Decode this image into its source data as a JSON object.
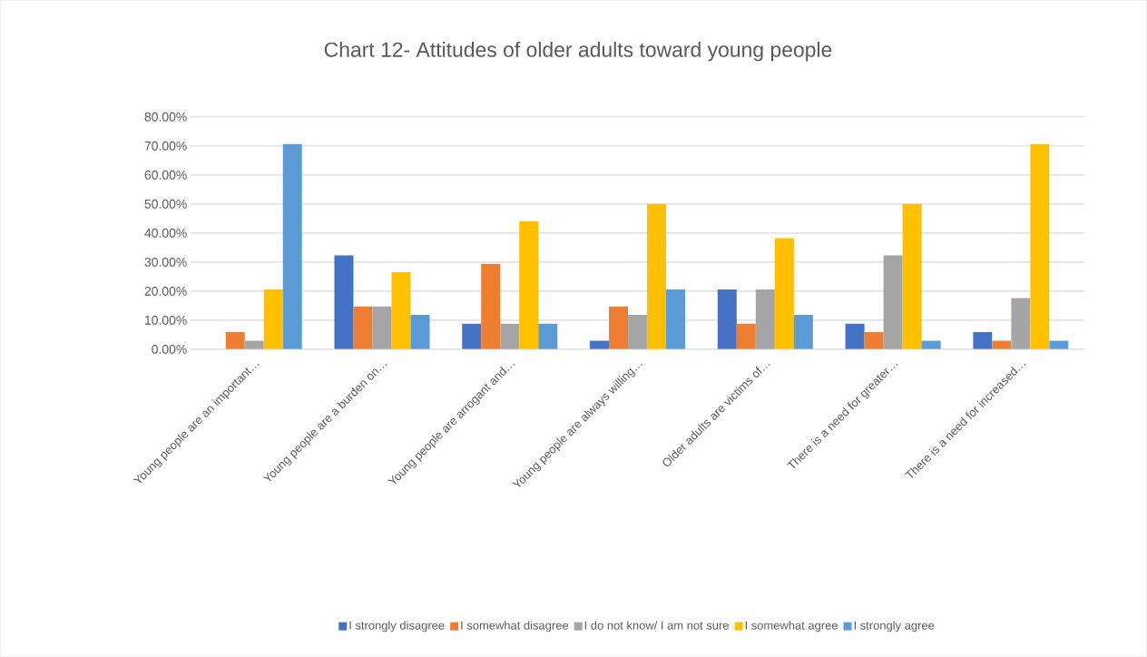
{
  "chart_data": {
    "type": "bar",
    "title": "Chart 12- Attitudes of older adults toward young people",
    "categories": [
      "Young people are an important…",
      "Young people are a burden on…",
      "Young people are arrogant and…",
      "Young people are always willing…",
      "Older adults are victims of…",
      "There is a need for greater…",
      "There is a need for increased…"
    ],
    "series": [
      {
        "name": "I strongly disagree",
        "color": "#4472c4",
        "values": [
          0,
          32.4,
          8.8,
          2.9,
          20.6,
          8.8,
          5.9
        ]
      },
      {
        "name": "I somewhat disagree",
        "color": "#ed7d31",
        "values": [
          5.9,
          14.7,
          29.4,
          14.7,
          8.8,
          5.9,
          2.9
        ]
      },
      {
        "name": "I do not know/ I am not sure",
        "color": "#a5a5a5",
        "values": [
          2.9,
          14.7,
          8.8,
          11.8,
          20.6,
          32.4,
          17.6
        ]
      },
      {
        "name": "I somewhat agree",
        "color": "#ffc000",
        "values": [
          20.6,
          26.5,
          44.1,
          50.0,
          38.2,
          50.0,
          70.6
        ]
      },
      {
        "name": "I strongly agree",
        "color": "#5b9bd5",
        "values": [
          70.6,
          11.8,
          8.8,
          20.6,
          11.8,
          2.9,
          2.9
        ]
      }
    ],
    "ylim": [
      0,
      80
    ],
    "yticks": [
      {
        "value": 0,
        "label": "0.00%"
      },
      {
        "value": 10,
        "label": "10.00%"
      },
      {
        "value": 20,
        "label": "20.00%"
      },
      {
        "value": 30,
        "label": "30.00%"
      },
      {
        "value": 40,
        "label": "40.00%"
      },
      {
        "value": 50,
        "label": "50.00%"
      },
      {
        "value": 60,
        "label": "60.00%"
      },
      {
        "value": 70,
        "label": "70.00%"
      },
      {
        "value": 80,
        "label": "80.00%"
      }
    ],
    "grid": "y",
    "legend": "bottom"
  }
}
